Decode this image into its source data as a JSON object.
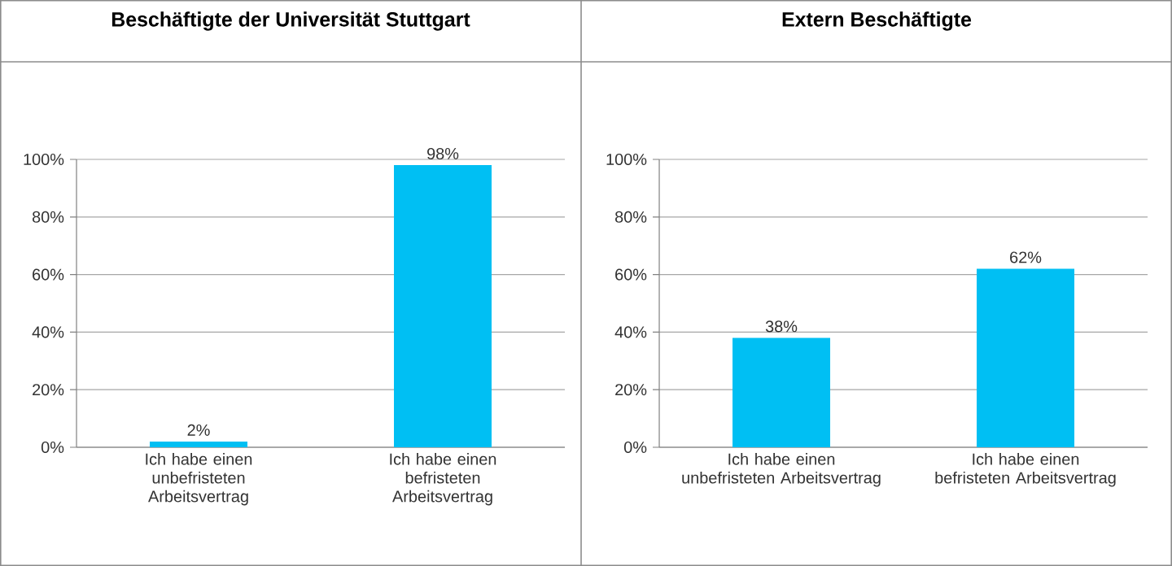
{
  "chart_data": [
    {
      "type": "bar",
      "title": "Beschäftigte der Universität Stuttgart",
      "categories": [
        "Ich habe einen unbefristeten Arbeitsvertrag",
        "Ich habe einen befristeten Arbeitsvertrag"
      ],
      "values": [
        2,
        98
      ],
      "value_labels": [
        "2%",
        "98%"
      ],
      "color": "#00bff3",
      "ylim": [
        0,
        100
      ],
      "yticks": [
        {
          "value": 0,
          "label": "0%"
        },
        {
          "value": 20,
          "label": "20%"
        },
        {
          "value": 40,
          "label": "40%"
        },
        {
          "value": 60,
          "label": "60%"
        },
        {
          "value": 80,
          "label": "80%"
        },
        {
          "value": 100,
          "label": "100%"
        }
      ],
      "grid": "y"
    },
    {
      "type": "bar",
      "title": "Extern Beschäftigte",
      "categories": [
        "Ich habe einen unbefristeten Arbeitsvertrag",
        "Ich habe einen befristeten Arbeitsvertrag"
      ],
      "values": [
        38,
        62
      ],
      "value_labels": [
        "38%",
        "62%"
      ],
      "color": "#00bff3",
      "ylim": [
        0,
        100
      ],
      "yticks": [
        {
          "value": 0,
          "label": "0%"
        },
        {
          "value": 20,
          "label": "20%"
        },
        {
          "value": 40,
          "label": "40%"
        },
        {
          "value": 60,
          "label": "60%"
        },
        {
          "value": 80,
          "label": "80%"
        },
        {
          "value": 100,
          "label": "100%"
        }
      ],
      "grid": "y"
    }
  ]
}
